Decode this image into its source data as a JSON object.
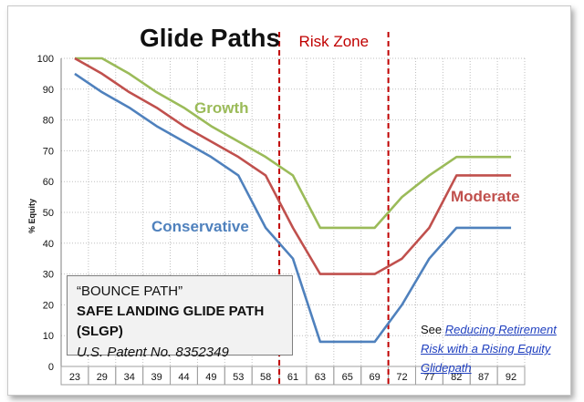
{
  "chart_data": {
    "type": "line",
    "title": "Glide Paths",
    "ylabel": "% Equity",
    "xlabel": "",
    "ylim": [
      0,
      100
    ],
    "yticks": [
      0,
      10,
      20,
      30,
      40,
      50,
      60,
      70,
      80,
      90,
      100
    ],
    "categories": [
      "23",
      "29",
      "34",
      "39",
      "44",
      "49",
      "53",
      "58",
      "61",
      "63",
      "65",
      "69",
      "72",
      "77",
      "82",
      "87",
      "92"
    ],
    "series": [
      {
        "name": "Growth",
        "color": "#9bbb59",
        "values": [
          100,
          100,
          95,
          89,
          84,
          78,
          73,
          68,
          62,
          45,
          45,
          45,
          55,
          62,
          68,
          68,
          68
        ]
      },
      {
        "name": "Moderate",
        "color": "#c0504d",
        "values": [
          100,
          95,
          89,
          84,
          78,
          73,
          68,
          62,
          45,
          30,
          30,
          30,
          35,
          45,
          62,
          62,
          62
        ]
      },
      {
        "name": "Conservative",
        "color": "#4f81bd",
        "values": [
          95,
          89,
          84,
          78,
          73,
          68,
          62,
          45,
          35,
          8,
          8,
          8,
          20,
          35,
          45,
          45,
          45
        ]
      }
    ],
    "annotations": {
      "risk_zone_label": "Risk Zone",
      "risk_zone_color": "#c00000",
      "risk_zone_bounds": [
        "58",
        "72"
      ]
    },
    "grid": true
  },
  "callout": {
    "line1": "“BOUNCE PATH”",
    "line2": "SAFE LANDING GLIDE PATH (SLGP)",
    "line3": "U.S. Patent No. 8352349"
  },
  "note": {
    "prefix": "See ",
    "link_text": "Reducing Retirement Risk with a Rising Equity Glidepath",
    "link_color": "#1f3fbf"
  }
}
